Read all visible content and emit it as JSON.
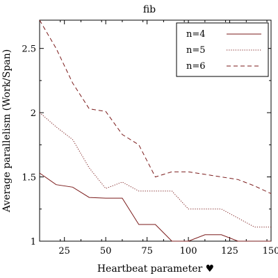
{
  "chart_data": {
    "type": "line",
    "title": "fib",
    "xlabel": "Heartbeat parameter ♥",
    "ylabel": "Average parallelism (Work/Span)",
    "xlim": [
      10,
      150
    ],
    "ylim": [
      1,
      2.72
    ],
    "grid": false,
    "legend_position": "top-right",
    "x_ticks_labeled": [
      "25",
      "50",
      "75",
      "100",
      "125",
      "150"
    ],
    "y_ticks_labeled": [
      "1",
      "1.5",
      "2",
      "2.5"
    ],
    "x": [
      10,
      20,
      30,
      40,
      50,
      60,
      70,
      80,
      90,
      100,
      110,
      120,
      130,
      140,
      150
    ],
    "series": [
      {
        "name": "n=4",
        "color": "#7a1a1a",
        "dash": "solid",
        "values": [
          1.53,
          1.44,
          1.42,
          1.34,
          1.335,
          1.335,
          1.13,
          1.13,
          1.0,
          1.0,
          1.05,
          1.05,
          1.0,
          1.0,
          1.0
        ]
      },
      {
        "name": "n=5",
        "color": "#7a1a1a",
        "dash": "dotted",
        "values": [
          2.0,
          1.89,
          1.79,
          1.57,
          1.41,
          1.46,
          1.39,
          1.39,
          1.39,
          1.25,
          1.25,
          1.25,
          1.18,
          1.11,
          1.11
        ]
      },
      {
        "name": "n=6",
        "color": "#7a1a1a",
        "dash": "dashed",
        "values": [
          2.72,
          2.5,
          2.23,
          2.03,
          2.01,
          1.83,
          1.75,
          1.5,
          1.54,
          1.54,
          1.52,
          1.5,
          1.48,
          1.43,
          1.37
        ]
      }
    ]
  }
}
